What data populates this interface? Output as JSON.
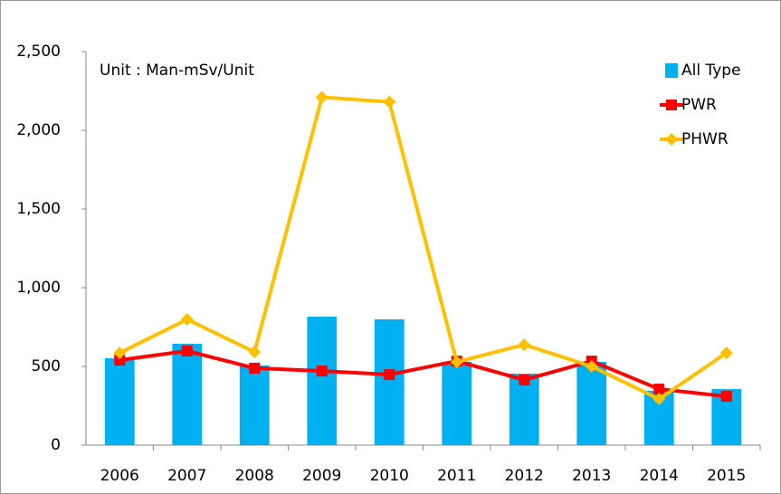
{
  "chart_data": {
    "type": "bar_line",
    "annotation": "Unit : Man-mSv/Unit",
    "categories": [
      "2006",
      "2007",
      "2008",
      "2009",
      "2010",
      "2011",
      "2012",
      "2013",
      "2014",
      "2015"
    ],
    "series": [
      {
        "name": "All Type",
        "type": "bar",
        "color": "#00b0f0",
        "values": [
          552,
          644,
          506,
          816,
          799,
          529,
          454,
          529,
          345,
          356
        ]
      },
      {
        "name": "PWR",
        "type": "line",
        "marker": "square",
        "color": "#ff0000",
        "values": [
          540,
          598,
          489,
          471,
          448,
          534,
          414,
          534,
          356,
          310
        ]
      },
      {
        "name": "PHWR",
        "type": "line",
        "marker": "diamond",
        "color": "#ffc000",
        "values": [
          586,
          799,
          592,
          2210,
          2180,
          529,
          638,
          500,
          293,
          586
        ]
      }
    ],
    "ylim": [
      0,
      2500
    ],
    "yticks": [
      0,
      500,
      {
        "value": 1000,
        "label": "1,000"
      },
      {
        "value": 1500,
        "label": "1,500"
      },
      {
        "value": 2000,
        "label": "2,000"
      },
      {
        "value": 2500,
        "label": "2,500"
      }
    ],
    "legend": "upper right"
  }
}
